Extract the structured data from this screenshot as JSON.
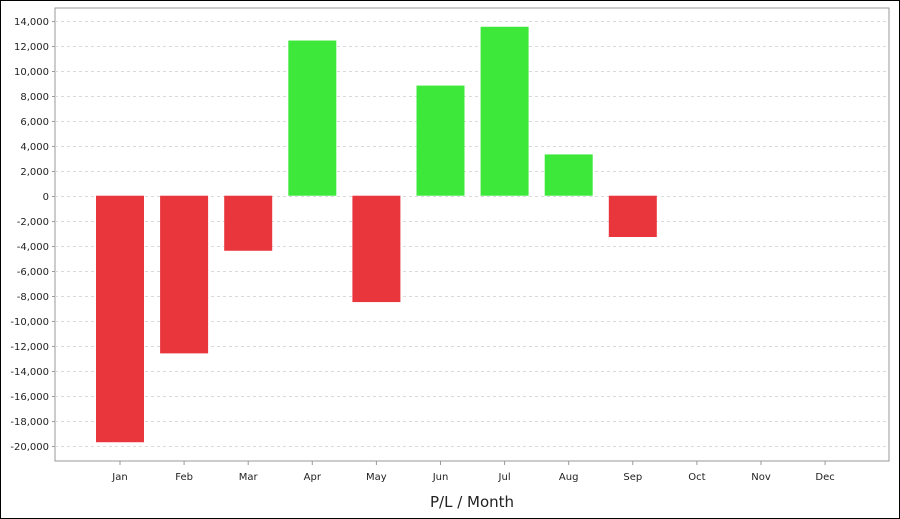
{
  "chart_data": {
    "type": "bar",
    "title": "",
    "xlabel": "P/L / Month",
    "ylabel": "",
    "categories": [
      "Jan",
      "Feb",
      "Mar",
      "Apr",
      "May",
      "Jun",
      "Jul",
      "Aug",
      "Sep",
      "Oct",
      "Nov",
      "Dec"
    ],
    "values": [
      -19700,
      -12600,
      -4400,
      12400,
      -8500,
      8800,
      13500,
      3300,
      -3300,
      null,
      null,
      null
    ],
    "ylim": [
      -21200,
      15000
    ],
    "yticks": [
      14000,
      12000,
      10000,
      8000,
      6000,
      4000,
      2000,
      0,
      -2000,
      -4000,
      -6000,
      -8000,
      -10000,
      -12000,
      -14000,
      -16000,
      -18000,
      -20000
    ],
    "ytick_labels": [
      "14,000",
      "12,000",
      "10,000",
      "8,000",
      "6,000",
      "4,000",
      "2,000",
      "0",
      "-2,000",
      "-4,000",
      "-6,000",
      "-8,000",
      "-10,000",
      "-12,000",
      "-14,000",
      "-16,000",
      "-18,000",
      "-20,000"
    ],
    "grid": true,
    "legend": "none",
    "colors": {
      "positive": "#3ee83b",
      "negative": "#e8363c",
      "grid": "#d9d9d9",
      "axis": "#999999"
    }
  }
}
